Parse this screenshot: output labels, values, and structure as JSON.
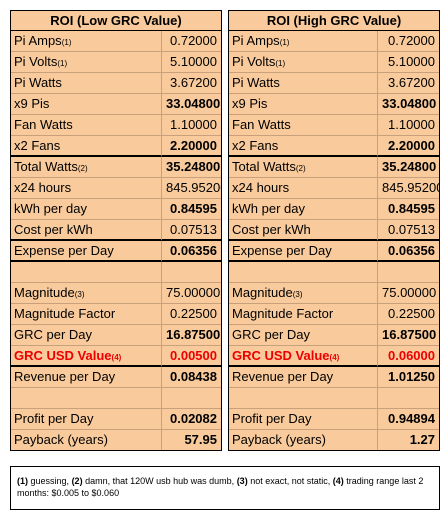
{
  "tables": [
    {
      "title": "ROI (Low GRC Value)",
      "sections": [
        [
          {
            "label": "Pi Amps",
            "note": "(1)",
            "value": "0.72000"
          },
          {
            "label": "Pi Volts",
            "note": "(1)",
            "value": "5.10000"
          },
          {
            "label": "Pi Watts",
            "value": "3.67200"
          },
          {
            "label": "x9 Pis",
            "value": "33.04800",
            "bold": true
          },
          {
            "label": "Fan Watts",
            "value": "1.10000"
          },
          {
            "label": "x2 Fans",
            "value": "2.20000",
            "bold": true,
            "underline": true
          },
          {
            "label": "Total Watts",
            "note": "(2)",
            "value": "35.24800",
            "bold": true
          },
          {
            "label": "x24 hours",
            "value": "845.95200"
          },
          {
            "label": "kWh per day",
            "value": "0.84595",
            "bold": true
          },
          {
            "label": "Cost per kWh",
            "value": "0.07513",
            "underline": true
          },
          {
            "label": "Expense per Day",
            "value": "0.06356",
            "bold": true,
            "underline": true
          }
        ],
        [
          {
            "label": "Magnitude",
            "note": "(3)",
            "value": "75.00000"
          },
          {
            "label": "Magnitude Factor",
            "value": "0.22500"
          },
          {
            "label": "GRC per Day",
            "value": "16.87500",
            "bold": true
          },
          {
            "label": "GRC USD Value",
            "note": "(4)",
            "value": "0.00500",
            "bold": true,
            "red": true,
            "underline": true
          },
          {
            "label": "Revenue per Day",
            "value": "0.08438",
            "bold": true
          }
        ],
        [
          {
            "label": "Profit per Day",
            "value": "0.02082",
            "bold": true
          },
          {
            "label": "Payback (years)",
            "value": "57.95",
            "bold": true
          }
        ]
      ]
    },
    {
      "title": "ROI (High GRC Value)",
      "sections": [
        [
          {
            "label": "Pi Amps",
            "note": "(1)",
            "value": "0.72000"
          },
          {
            "label": "Pi Volts",
            "note": "(1)",
            "value": "5.10000"
          },
          {
            "label": "Pi Watts",
            "value": "3.67200"
          },
          {
            "label": "x9 Pis",
            "value": "33.04800",
            "bold": true
          },
          {
            "label": "Fan Watts",
            "value": "1.10000"
          },
          {
            "label": "x2 Fans",
            "value": "2.20000",
            "bold": true,
            "underline": true
          },
          {
            "label": "Total Watts",
            "note": "(2)",
            "value": "35.24800",
            "bold": true
          },
          {
            "label": "x24 hours",
            "value": "845.95200"
          },
          {
            "label": "kWh per day",
            "value": "0.84595",
            "bold": true
          },
          {
            "label": "Cost per kWh",
            "value": "0.07513",
            "underline": true
          },
          {
            "label": "Expense per Day",
            "value": "0.06356",
            "bold": true,
            "underline": true
          }
        ],
        [
          {
            "label": "Magnitude",
            "note": "(3)",
            "value": "75.00000"
          },
          {
            "label": "Magnitude Factor",
            "value": "0.22500"
          },
          {
            "label": "GRC per Day",
            "value": "16.87500",
            "bold": true
          },
          {
            "label": "GRC USD Value",
            "note": "(4)",
            "value": "0.06000",
            "bold": true,
            "red": true,
            "underline": true
          },
          {
            "label": "Revenue per Day",
            "value": "1.01250",
            "bold": true
          }
        ],
        [
          {
            "label": "Profit per Day",
            "value": "0.94894",
            "bold": true
          },
          {
            "label": "Payback (years)",
            "value": "1.27",
            "bold": true
          }
        ]
      ]
    }
  ],
  "footnotes": [
    {
      "marker": "(1)",
      "text": "guessing,"
    },
    {
      "marker": "(2)",
      "text": "damn, that 120W usb hub was dumb,"
    },
    {
      "marker": "(3)",
      "text": "not exact, not static,"
    },
    {
      "marker": "(4)",
      "text": "trading range last 2 months: $0.005 to $0.060"
    }
  ]
}
